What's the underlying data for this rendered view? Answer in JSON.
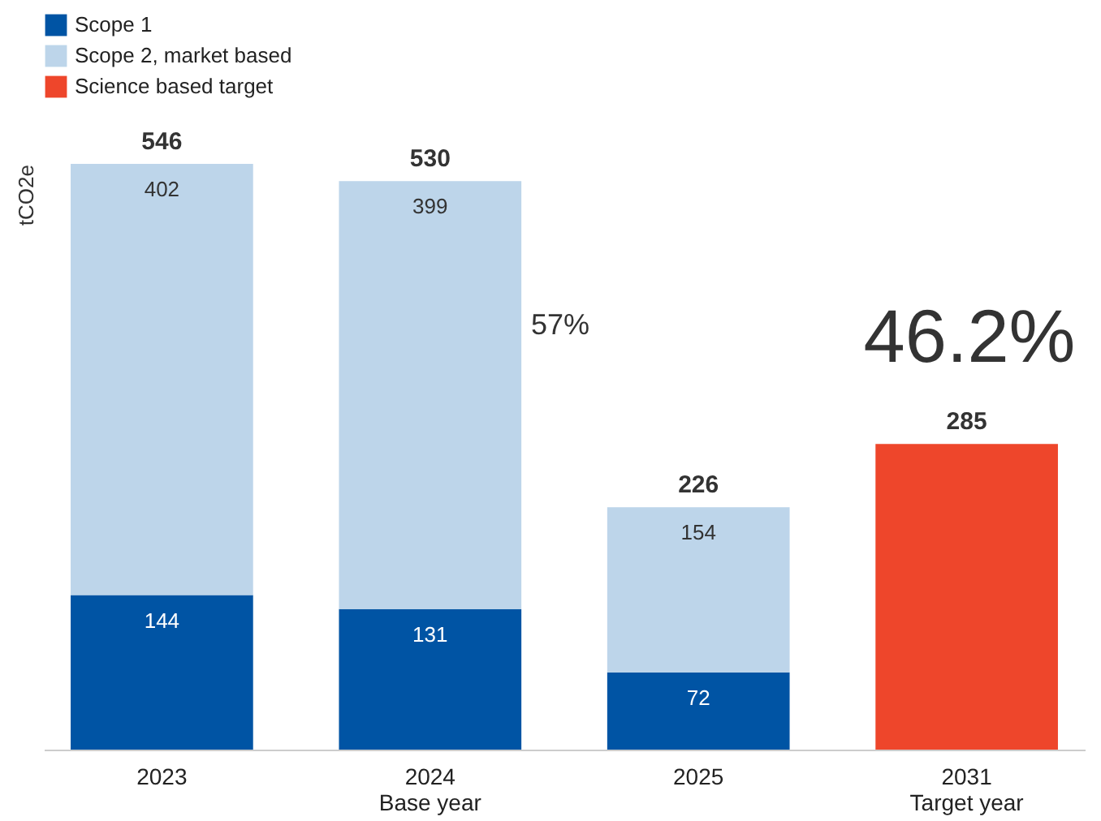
{
  "chart_data": {
    "type": "bar",
    "stacked": true,
    "ylabel": "tCO2e",
    "legend": "top left",
    "grid": false,
    "data_labels": true,
    "categories": [
      "2023",
      "2024\nBase year",
      "2025",
      "2031\nTarget year"
    ],
    "series": [
      {
        "name": "Scope 1",
        "color": "#0054a4",
        "values": [
          144,
          131,
          72,
          null
        ]
      },
      {
        "name": "Scope 2, market based",
        "color": "#bdd5ea",
        "values": [
          402,
          399,
          154,
          null
        ]
      },
      {
        "name": "Science based target",
        "color": "#ee462b",
        "values": [
          null,
          null,
          null,
          285
        ]
      }
    ],
    "totals": [
      "546",
      "530",
      "226",
      null
    ],
    "annotations": [
      "57%",
      "46.2%"
    ]
  }
}
